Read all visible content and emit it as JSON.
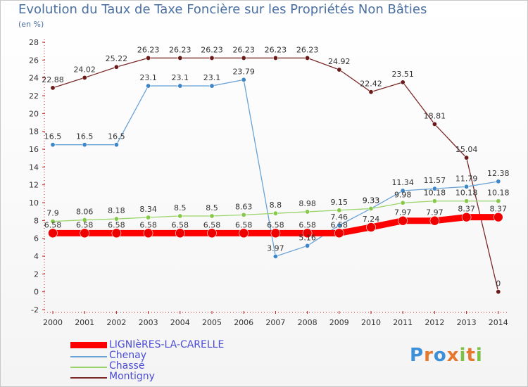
{
  "header": {
    "title": "Evolution du Taux de Taxe Foncière sur les Propriétés Non Bâties",
    "unit": "(en %)"
  },
  "logo": {
    "text": "Proxiti",
    "letters": [
      "P",
      "r",
      "o",
      "x",
      "i",
      "t",
      "i"
    ],
    "colors": [
      "#3c8fd8",
      "#e8772e",
      "#3c8fd8",
      "#e8772e",
      "#7cc242",
      "#e8772e",
      "#7cc242"
    ]
  },
  "chart_data": {
    "type": "line",
    "title": "Evolution du Taux de Taxe Foncière sur les Propriétés Non Bâties",
    "ylabel": "(en %)",
    "xlabel": "",
    "ylim": [
      -2,
      28
    ],
    "yticks": [
      -2,
      0,
      2,
      4,
      6,
      8,
      10,
      12,
      14,
      16,
      18,
      20,
      22,
      24,
      26,
      28
    ],
    "categories": [
      "2000",
      "2001",
      "2002",
      "2003",
      "2004",
      "2005",
      "2006",
      "2007",
      "2008",
      "2009",
      "2010",
      "2011",
      "2012",
      "2013",
      "2014"
    ],
    "series": [
      {
        "name": "Montigny",
        "color": "#7a2a2a",
        "marker": "#6b1a1a",
        "values": [
          22.88,
          24.02,
          25.22,
          26.23,
          26.23,
          26.23,
          26.23,
          26.23,
          26.23,
          24.92,
          22.42,
          23.51,
          18.81,
          15.04,
          0
        ],
        "labels": [
          "22.88",
          "24.02",
          "25.22",
          "26.23",
          "26.23",
          "26.23",
          "26.23",
          "26.23",
          "26.23",
          "24.92",
          "22.42",
          "23.51",
          "18.81",
          "15.04",
          "0"
        ]
      },
      {
        "name": "Chenay",
        "color": "#6aa3d6",
        "marker": "#3f86c8",
        "values": [
          16.5,
          16.5,
          16.5,
          23.1,
          23.1,
          23.1,
          23.79,
          3.97,
          5.16,
          7.46,
          9.33,
          11.34,
          11.57,
          11.79,
          12.38
        ],
        "labels": [
          "16.5",
          "16.5",
          "16.5",
          "23.1",
          "23.1",
          "23.1",
          "23.79",
          "3.97",
          "5.16",
          "7.46",
          "9.33",
          "11.34",
          "11.57",
          "11.79",
          "12.38"
        ]
      },
      {
        "name": "Chassé",
        "color": "#9ad46a",
        "marker": "#86c84a",
        "values": [
          7.9,
          8.06,
          8.18,
          8.34,
          8.5,
          8.5,
          8.63,
          8.8,
          8.98,
          9.15,
          9.33,
          9.98,
          10.18,
          10.18,
          10.18
        ],
        "labels": [
          "7.9",
          "8.06",
          "8.18",
          "8.34",
          "8.5",
          "8.5",
          "8.63",
          "8.8",
          "8.98",
          "9.15",
          "9.33",
          "9.98",
          "10.18",
          "10.18",
          "10.18"
        ]
      },
      {
        "name": "LIGNIèRES-LA-CARELLE",
        "color": "#ff0000",
        "marker": "#ee0000",
        "values": [
          6.58,
          6.58,
          6.58,
          6.58,
          6.58,
          6.58,
          6.58,
          6.58,
          6.58,
          6.58,
          7.24,
          7.97,
          7.97,
          8.37,
          8.37
        ],
        "labels": [
          "6.58",
          "6.58",
          "6.58",
          "6.58",
          "6.58",
          "6.58",
          "6.58",
          "6.58",
          "6.58",
          "6.58",
          "7.24",
          "7.97",
          "7.97",
          "8.37",
          "8.37"
        ]
      }
    ],
    "legend": [
      "LIGNIèRES-LA-CARELLE",
      "Chenay",
      "Chassé",
      "Montigny"
    ],
    "legend_placement": "bottom-left",
    "grid": false
  }
}
